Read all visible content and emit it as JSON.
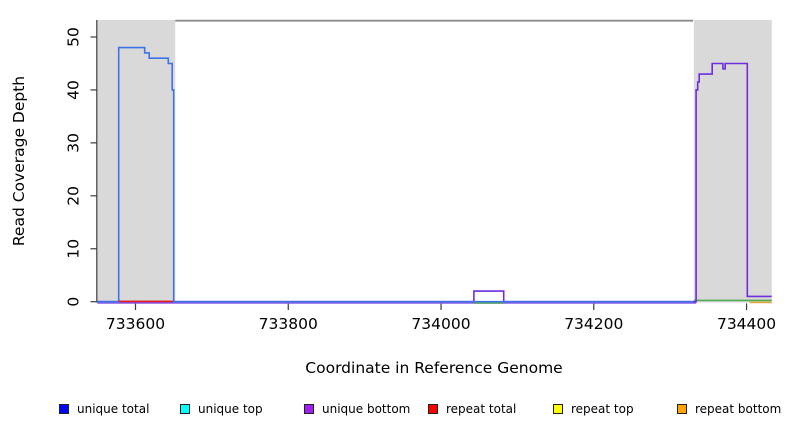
{
  "chart_data": {
    "type": "line",
    "title": "",
    "xlabel": "Coordinate in Reference Genome",
    "ylabel": "Read Coverage Depth",
    "xlim": [
      733549,
      734433
    ],
    "ylim": [
      0,
      53
    ],
    "x_ticks": [
      733600,
      733800,
      734000,
      734200,
      734400
    ],
    "y_ticks": [
      0,
      10,
      20,
      30,
      40,
      50
    ],
    "grid": false,
    "legend_position": "bottom",
    "background_color": "#ffffff",
    "highlight_color": "#d9d9d9",
    "highlight_regions": [
      {
        "name": "left-shaded-region",
        "x0": 733550,
        "x1": 733652
      },
      {
        "name": "right-shaded-region",
        "x0": 734331,
        "x1": 734433
      }
    ],
    "top_clipped_line": {
      "depth_estimate": 53,
      "x0": 733652,
      "x1": 734330,
      "color": "#8c8c8c"
    },
    "series": [
      {
        "name": "unique total",
        "line_color": "#3d72e8",
        "points": [
          [
            733550,
            0
          ],
          [
            733578,
            0
          ],
          [
            733578,
            48
          ],
          [
            733612,
            48
          ],
          [
            733612,
            47
          ],
          [
            733618,
            47
          ],
          [
            733618,
            46
          ],
          [
            733643,
            46
          ],
          [
            733643,
            45
          ],
          [
            733648,
            45
          ],
          [
            733648,
            40
          ],
          [
            733650,
            40
          ],
          [
            733650,
            0
          ],
          [
            734330,
            0
          ]
        ]
      },
      {
        "name": "unique bottom",
        "line_color": "#6f2ce0",
        "points": [
          [
            733550,
            0
          ],
          [
            734043,
            0
          ],
          [
            734043,
            2
          ],
          [
            734082,
            2
          ],
          [
            734082,
            0
          ],
          [
            734334,
            0
          ],
          [
            734334,
            40
          ],
          [
            734336,
            40
          ],
          [
            734336,
            41.5
          ],
          [
            734338,
            41.5
          ],
          [
            734338,
            43
          ],
          [
            734355,
            43
          ],
          [
            734355,
            45
          ],
          [
            734369,
            45
          ],
          [
            734369,
            44
          ],
          [
            734372,
            44
          ],
          [
            734372,
            45
          ],
          [
            734401,
            45
          ],
          [
            734401,
            1
          ],
          [
            734433,
            1
          ]
        ]
      }
    ],
    "zero_depth_segments": [
      {
        "id": "bottom-strand-zero-underlay",
        "color": "#8a5ae8",
        "x0": 733550,
        "x1": 734334
      },
      {
        "id": "top-strand-zero-right",
        "color": "#52ab52",
        "x0": 734331,
        "x1": 734433
      },
      {
        "id": "repeat-zero-right",
        "color": "#e2a53e",
        "x0": 734404,
        "x1": 734433
      },
      {
        "id": "top-strand-zero-bump",
        "color": "#52ab52",
        "x0": 734043,
        "x1": 734082
      },
      {
        "id": "repeat-total-zero-left",
        "color": "#e02222",
        "x0": 733578,
        "x1": 733649
      }
    ],
    "legend": {
      "items": [
        {
          "label": "unique total",
          "color": "#0000ff"
        },
        {
          "label": "unique top",
          "color": "#00ffff"
        },
        {
          "label": "unique bottom",
          "color": "#a020f0"
        },
        {
          "label": "repeat total",
          "color": "#ff0000"
        },
        {
          "label": "repeat top",
          "color": "#ffff00"
        },
        {
          "label": "repeat bottom",
          "color": "#ffa500"
        }
      ]
    }
  }
}
